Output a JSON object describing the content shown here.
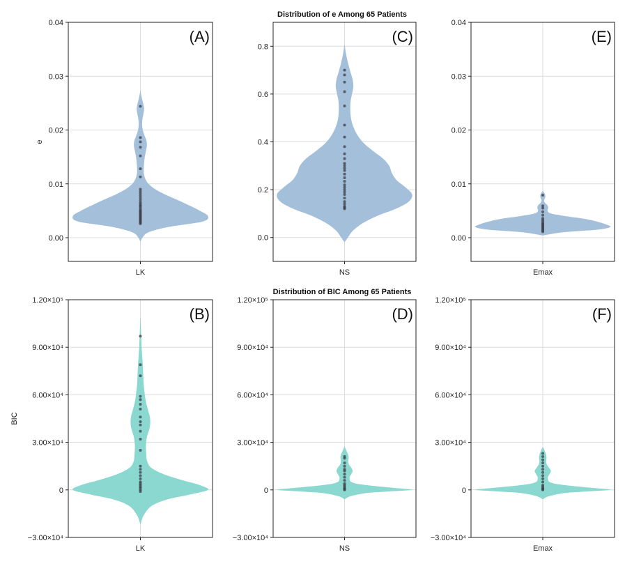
{
  "figure": {
    "row_titles": [
      "Distribution of e Among 65 Patients",
      "Distribution of BIC Among 65 Patients"
    ],
    "row_colors": [
      "#a3bfda",
      "#8ad8d0"
    ],
    "dot_color": "#3c3c46"
  },
  "chart_data": [
    {
      "type": "violin",
      "panel": "(A)",
      "category": "LK",
      "ylabel": "e",
      "row": 0,
      "ylim": [
        -0.0044,
        0.04
      ],
      "yticks": [
        0.0,
        0.01,
        0.02,
        0.03,
        0.04
      ],
      "ytick_labels": [
        "0.00",
        "0.01",
        "0.02",
        "0.03",
        "0.04"
      ],
      "density": {
        "y": [
          -0.0008,
          0.0,
          0.001,
          0.002,
          0.003,
          0.004,
          0.005,
          0.006,
          0.007,
          0.008,
          0.009,
          0.01,
          0.011,
          0.012,
          0.013,
          0.014,
          0.015,
          0.016,
          0.017,
          0.018,
          0.019,
          0.02,
          0.021,
          0.022,
          0.023,
          0.024,
          0.025,
          0.026,
          0.027,
          0.0275
        ],
        "w": [
          0.0,
          0.03,
          0.12,
          0.42,
          0.92,
          1.0,
          0.88,
          0.72,
          0.55,
          0.37,
          0.22,
          0.12,
          0.07,
          0.05,
          0.05,
          0.055,
          0.065,
          0.08,
          0.095,
          0.09,
          0.06,
          0.035,
          0.025,
          0.03,
          0.045,
          0.055,
          0.04,
          0.02,
          0.005,
          0.0
        ]
      },
      "points": [
        0.0026,
        0.0028,
        0.003,
        0.0032,
        0.0034,
        0.0036,
        0.0038,
        0.004,
        0.0042,
        0.0044,
        0.0046,
        0.0048,
        0.005,
        0.0052,
        0.0055,
        0.0058,
        0.006,
        0.0063,
        0.0066,
        0.007,
        0.0074,
        0.0078,
        0.0082,
        0.0086,
        0.009,
        0.0113,
        0.0128,
        0.0152,
        0.0168,
        0.0178,
        0.0186,
        0.0244
      ]
    },
    {
      "type": "violin",
      "panel": "(C)",
      "category": "NS",
      "ylabel": "",
      "row": 0,
      "ylim": [
        -0.1,
        0.9
      ],
      "yticks": [
        0.0,
        0.2,
        0.4,
        0.6,
        0.8
      ],
      "ytick_labels": [
        "0.0",
        "0.2",
        "0.4",
        "0.6",
        "0.8"
      ],
      "density": {
        "y": [
          -0.02,
          0.0,
          0.03,
          0.06,
          0.09,
          0.12,
          0.15,
          0.18,
          0.21,
          0.24,
          0.27,
          0.3,
          0.33,
          0.36,
          0.39,
          0.42,
          0.45,
          0.48,
          0.51,
          0.54,
          0.57,
          0.6,
          0.63,
          0.66,
          0.69,
          0.72,
          0.75,
          0.78,
          0.81
        ],
        "w": [
          0.0,
          0.05,
          0.13,
          0.27,
          0.48,
          0.76,
          0.95,
          1.0,
          0.9,
          0.77,
          0.7,
          0.66,
          0.57,
          0.43,
          0.3,
          0.21,
          0.15,
          0.11,
          0.09,
          0.085,
          0.09,
          0.11,
          0.13,
          0.12,
          0.09,
          0.06,
          0.035,
          0.015,
          0.0
        ]
      },
      "points": [
        0.12,
        0.125,
        0.13,
        0.14,
        0.15,
        0.165,
        0.18,
        0.19,
        0.2,
        0.21,
        0.22,
        0.235,
        0.25,
        0.265,
        0.28,
        0.29,
        0.3,
        0.31,
        0.33,
        0.35,
        0.38,
        0.42,
        0.47,
        0.55,
        0.61,
        0.65,
        0.68,
        0.7
      ]
    },
    {
      "type": "violin",
      "panel": "(E)",
      "category": "Emax",
      "ylabel": "",
      "row": 0,
      "ylim": [
        -0.0044,
        0.04
      ],
      "yticks": [
        0.0,
        0.01,
        0.02,
        0.03,
        0.04
      ],
      "ytick_labels": [
        "0.00",
        "0.01",
        "0.02",
        "0.03",
        "0.04"
      ],
      "density": {
        "y": [
          0.0004,
          0.001,
          0.0015,
          0.002,
          0.0025,
          0.003,
          0.0035,
          0.004,
          0.0045,
          0.005,
          0.0055,
          0.006,
          0.0065,
          0.007,
          0.0075,
          0.008,
          0.0085,
          0.0087
        ],
        "w": [
          0.0,
          0.3,
          0.82,
          1.0,
          0.93,
          0.8,
          0.62,
          0.34,
          0.12,
          0.07,
          0.08,
          0.07,
          0.03,
          0.02,
          0.035,
          0.035,
          0.012,
          0.0
        ]
      },
      "points": [
        0.0011,
        0.0013,
        0.0015,
        0.0017,
        0.0019,
        0.0021,
        0.0023,
        0.0025,
        0.0027,
        0.003,
        0.0033,
        0.0036,
        0.0042,
        0.0048,
        0.0055,
        0.0059,
        0.0079
      ]
    },
    {
      "type": "violin",
      "panel": "(B)",
      "category": "LK",
      "ylabel": "BIC",
      "row": 1,
      "ylim": [
        -30000,
        120000
      ],
      "yticks": [
        -30000,
        0,
        30000,
        60000,
        90000,
        120000
      ],
      "ytick_labels": [
        "−3.00×10⁴",
        "0",
        "3.00×10⁴",
        "6.00×10⁴",
        "9.00×10⁴",
        "1.20×10⁵"
      ],
      "density": {
        "y": [
          -22000,
          -16000,
          -10000,
          -6000,
          -3000,
          0,
          3000,
          6000,
          10000,
          14000,
          18000,
          22000,
          26000,
          30000,
          34000,
          38000,
          42000,
          46000,
          50000,
          54000,
          58000,
          62000,
          66000,
          70000,
          74000,
          78000,
          82000,
          86000,
          90000,
          95000,
          100000,
          105000,
          110000
        ],
        "w": [
          0.0,
          0.05,
          0.17,
          0.4,
          0.73,
          1.0,
          0.88,
          0.63,
          0.34,
          0.16,
          0.1,
          0.088,
          0.082,
          0.085,
          0.1,
          0.13,
          0.145,
          0.14,
          0.115,
          0.09,
          0.072,
          0.06,
          0.05,
          0.045,
          0.04,
          0.036,
          0.03,
          0.024,
          0.018,
          0.013,
          0.009,
          0.005,
          0.0
        ]
      },
      "points": [
        -1000,
        0,
        1000,
        2000,
        3000,
        4000,
        5000,
        7000,
        9000,
        11000,
        13000,
        15000,
        25000,
        32000,
        37000,
        41000,
        43000,
        46000,
        51000,
        54000,
        57000,
        59000,
        72000,
        79000,
        97000
      ]
    },
    {
      "type": "violin",
      "panel": "(D)",
      "category": "NS",
      "ylabel": "",
      "row": 1,
      "ylim": [
        -30000,
        120000
      ],
      "yticks": [
        -30000,
        0,
        30000,
        60000,
        90000,
        120000
      ],
      "ytick_labels": [
        "−3.00×10⁴",
        "0",
        "3.00×10⁴",
        "6.00×10⁴",
        "9.00×10⁴",
        "1.20×10⁵"
      ],
      "density": {
        "y": [
          -6000,
          -4000,
          -2000,
          -1000,
          0,
          1000,
          2000,
          3000,
          4000,
          5000,
          6000,
          8000,
          10000,
          12000,
          14000,
          16000,
          18000,
          20000,
          22000,
          24000,
          26000,
          27500
        ],
        "w": [
          0.0,
          0.09,
          0.32,
          0.65,
          1.0,
          0.8,
          0.55,
          0.33,
          0.17,
          0.1,
          0.08,
          0.075,
          0.1,
          0.12,
          0.1,
          0.065,
          0.055,
          0.06,
          0.055,
          0.035,
          0.015,
          0.0
        ]
      },
      "points": [
        0,
        500,
        1000,
        2000,
        3000,
        4000,
        6000,
        8000,
        10000,
        12000,
        13000,
        15000,
        17000,
        20000,
        21000
      ]
    },
    {
      "type": "violin",
      "panel": "(F)",
      "category": "Emax",
      "ylabel": "",
      "row": 1,
      "ylim": [
        -30000,
        120000
      ],
      "yticks": [
        -30000,
        0,
        30000,
        60000,
        90000,
        120000
      ],
      "ytick_labels": [
        "−3.00×10⁴",
        "0",
        "3.00×10⁴",
        "6.00×10⁴",
        "9.00×10⁴",
        "1.20×10⁵"
      ],
      "density": {
        "y": [
          -6000,
          -4000,
          -2000,
          -1000,
          0,
          1000,
          2000,
          3000,
          4000,
          5000,
          6000,
          8000,
          10000,
          12000,
          14000,
          16000,
          18000,
          20000,
          22000,
          24000,
          26000,
          27000
        ],
        "w": [
          0.0,
          0.09,
          0.32,
          0.65,
          1.0,
          0.8,
          0.55,
          0.33,
          0.17,
          0.1,
          0.08,
          0.075,
          0.1,
          0.12,
          0.09,
          0.06,
          0.05,
          0.055,
          0.05,
          0.035,
          0.015,
          0.0
        ]
      },
      "points": [
        0,
        500,
        1000,
        2000,
        3000,
        5000,
        7000,
        9000,
        11000,
        13000,
        15000,
        17000,
        19000,
        21000,
        23000
      ]
    }
  ]
}
